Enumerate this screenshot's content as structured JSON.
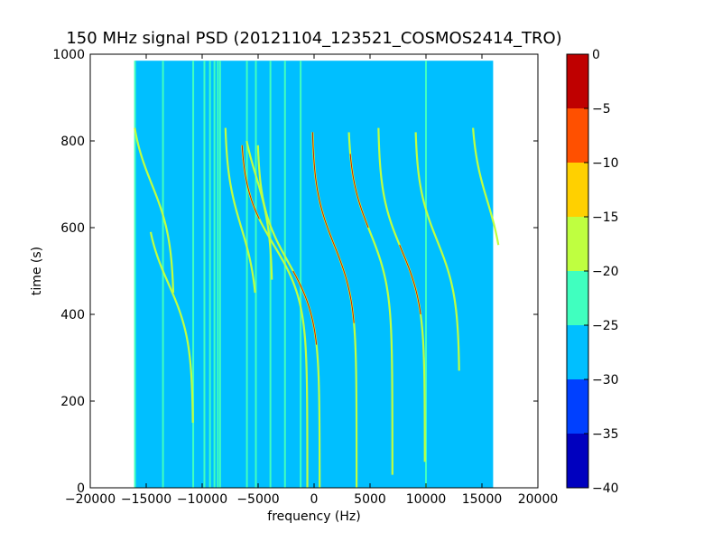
{
  "chart_data": {
    "type": "heatmap",
    "title": "150 MHz signal PSD (20121104_123521_COSMOS2414_TRO)",
    "xlabel": "frequency (Hz)",
    "ylabel": "time (s)",
    "xlim": [
      -20000,
      20000
    ],
    "ylim": [
      0,
      1000
    ],
    "xticks": [
      -20000,
      -15000,
      -10000,
      -5000,
      0,
      5000,
      10000,
      15000,
      20000
    ],
    "yticks": [
      0,
      200,
      400,
      600,
      800,
      1000
    ],
    "xtick_labels": [
      "−20000",
      "−15000",
      "−10000",
      "−5000",
      "0",
      "5000",
      "10000",
      "15000",
      "20000"
    ],
    "ytick_labels": [
      "0",
      "200",
      "400",
      "600",
      "800",
      "1000"
    ],
    "data_extent": {
      "x": [
        -16000,
        16000
      ],
      "y": [
        0,
        985
      ]
    },
    "background_level": -27.5,
    "colorbar": {
      "levels": [
        -40,
        -35,
        -30,
        -25,
        -20,
        -15,
        -10,
        -5,
        0
      ],
      "tick_labels": [
        "0",
        "−5",
        "−10",
        "−15",
        "−20",
        "−25",
        "−30",
        "−35",
        "−40"
      ],
      "colors": [
        "#0000bf",
        "#0040ff",
        "#00bfff",
        "#40ffbf",
        "#bfff40",
        "#ffd000",
        "#ff5000",
        "#bf0000"
      ]
    },
    "vertical_lines_hz": [
      -16000,
      -13500,
      -10800,
      -9800,
      -9300,
      -8900,
      -8600,
      -8400,
      -6000,
      -5200,
      -3900,
      -2600,
      -1200,
      10000
    ],
    "doppler_traces": [
      {
        "f_center": -14500,
        "t_center": 700,
        "amplitude": 2000,
        "t_start": 450,
        "t_end": 830
      },
      {
        "f_center": -13000,
        "t_center": 470,
        "amplitude": 2200,
        "t_start": 150,
        "t_end": 590
      },
      {
        "f_center": -6500,
        "t_center": 600,
        "amplitude": 1500,
        "t_start": 450,
        "t_end": 830
      },
      {
        "f_center": -5200,
        "t_center": 720,
        "amplitude": 1500,
        "t_start": 480,
        "t_end": 800
      },
      {
        "f_center": -3600,
        "t_center": 560,
        "amplitude": 3000,
        "t_start": 0,
        "t_end": 790
      },
      {
        "f_center": -2300,
        "t_center": 520,
        "amplitude": 2800,
        "t_start": 0,
        "t_end": 790
      },
      {
        "f_center": 1800,
        "t_center": 560,
        "amplitude": 2000,
        "t_start": 0,
        "t_end": 820
      },
      {
        "f_center": 5000,
        "t_center": 590,
        "amplitude": 2000,
        "t_start": 30,
        "t_end": 820
      },
      {
        "f_center": 7800,
        "t_center": 550,
        "amplitude": 2100,
        "t_start": 60,
        "t_end": 830
      },
      {
        "f_center": 11000,
        "t_center": 570,
        "amplitude": 2000,
        "t_start": 270,
        "t_end": 820
      },
      {
        "f_center": 15500,
        "t_center": 660,
        "amplitude": 1500,
        "t_start": 560,
        "t_end": 830
      }
    ],
    "red_segments": [
      {
        "f_center": -3600,
        "t_center": 560,
        "amplitude": 3000,
        "t_start": 620,
        "t_end": 790
      },
      {
        "f_center": -2300,
        "t_center": 520,
        "amplitude": 2800,
        "t_start": 330,
        "t_end": 500
      },
      {
        "f_center": 1800,
        "t_center": 560,
        "amplitude": 2000,
        "t_start": 380,
        "t_end": 820
      },
      {
        "f_center": 5000,
        "t_center": 590,
        "amplitude": 2000,
        "t_start": 600,
        "t_end": 770
      },
      {
        "f_center": 7800,
        "t_center": 550,
        "amplitude": 2100,
        "t_start": 400,
        "t_end": 560
      }
    ]
  }
}
